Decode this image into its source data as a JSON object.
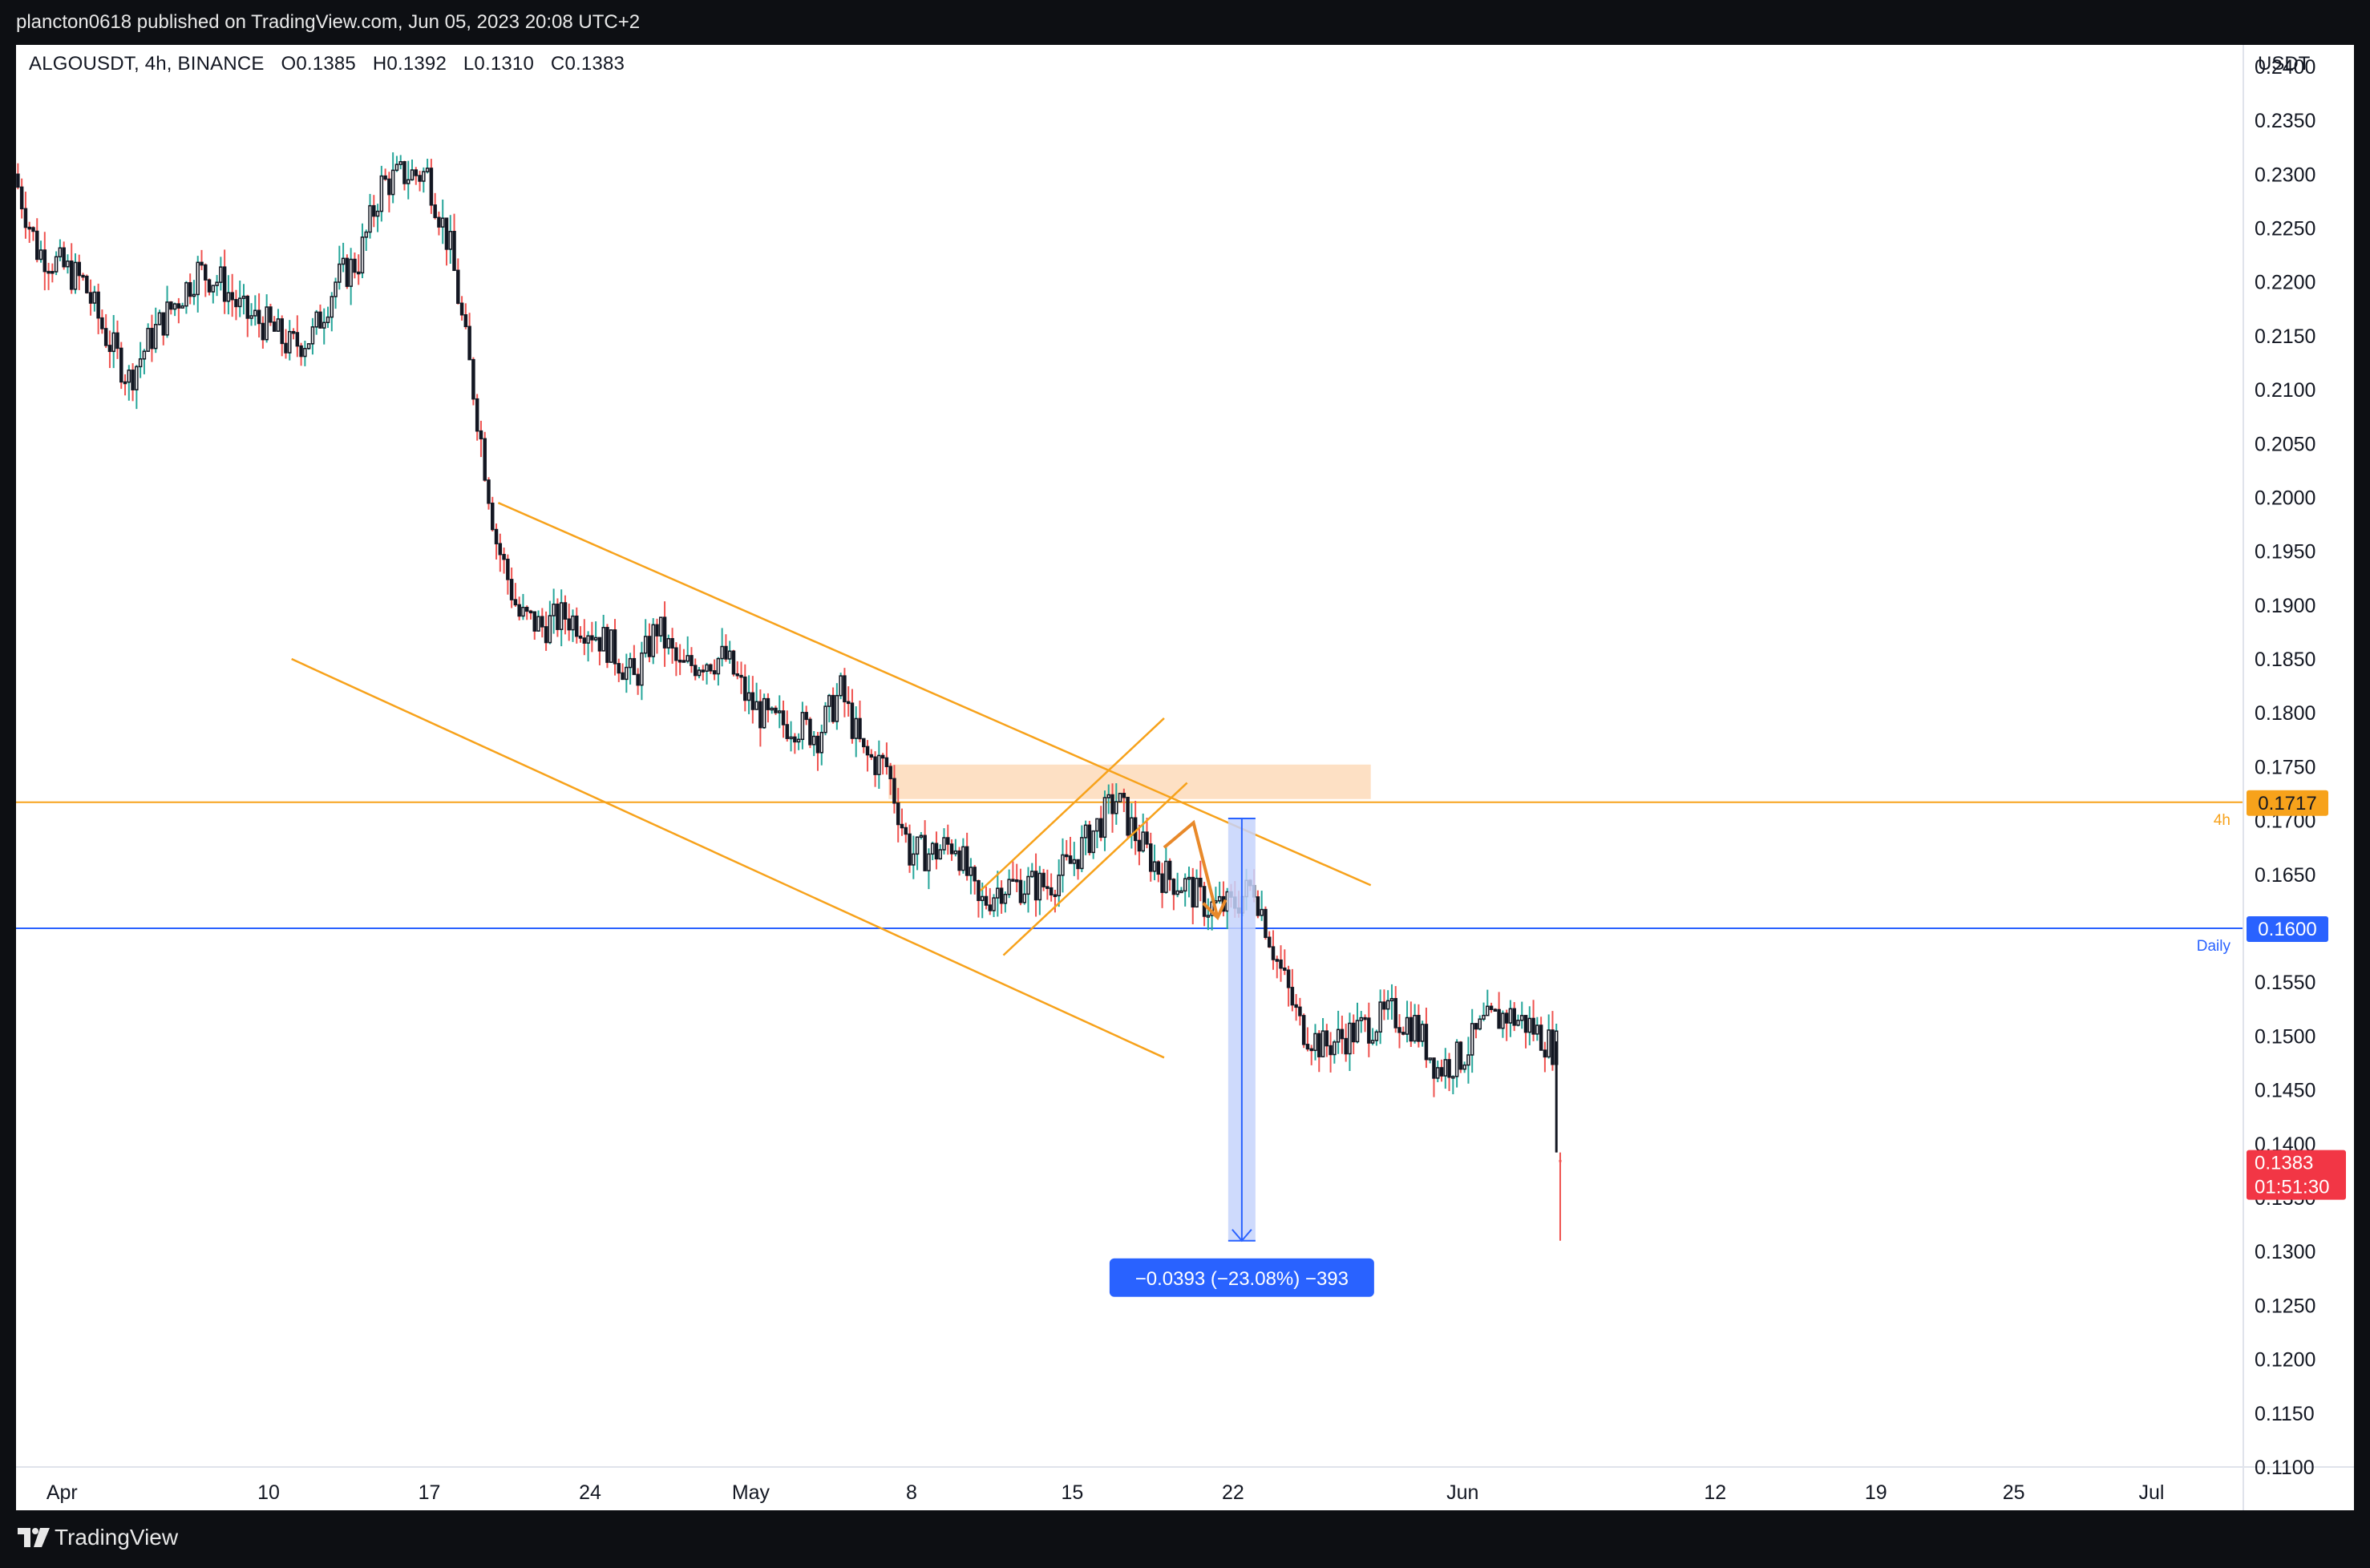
{
  "header": {
    "publisher_line": "plancton0618 published on TradingView.com, Jun 05, 2023 20:08 UTC+2"
  },
  "legend": {
    "symbol": "ALGOUSDT, 4h, BINANCE",
    "open": "O0.1385",
    "high": "H0.1392",
    "low": "L0.1310",
    "close": "C0.1383"
  },
  "price_axis": {
    "unit": "USDT"
  },
  "branding": {
    "name": "TradingView"
  },
  "colors": {
    "up": "#26a69a",
    "down": "#ef5350",
    "candle_body": "#131722",
    "drawing_orange": "#f7a21b",
    "daily_line": "#2962ff",
    "measure": "#2962ff",
    "last_price": "#f23645"
  },
  "chart_data": {
    "type": "candlestick",
    "symbol": "ALGOUSDT",
    "interval": "4h",
    "exchange": "BINANCE",
    "ohlc_last": {
      "open": 0.1385,
      "high": 0.1392,
      "low": 0.131,
      "close": 0.1383
    },
    "y_range": [
      0.11,
      0.242
    ],
    "y_ticks": [
      "0.2400",
      "0.2350",
      "0.2300",
      "0.2250",
      "0.2200",
      "0.2150",
      "0.2100",
      "0.2050",
      "0.2000",
      "0.1950",
      "0.1900",
      "0.1850",
      "0.1800",
      "0.1750",
      "0.1700",
      "0.1650",
      "0.1600",
      "0.1550",
      "0.1500",
      "0.1450",
      "0.1400",
      "0.1350",
      "0.1300",
      "0.1250",
      "0.1200",
      "0.1150",
      "0.1100"
    ],
    "x_range": [
      "2023-03-30",
      "2023-07-05"
    ],
    "x_ticks": [
      {
        "label": "Apr",
        "date": "2023-04-01"
      },
      {
        "label": "10",
        "date": "2023-04-10"
      },
      {
        "label": "17",
        "date": "2023-04-17"
      },
      {
        "label": "24",
        "date": "2023-04-24"
      },
      {
        "label": "May",
        "date": "2023-05-01"
      },
      {
        "label": "8",
        "date": "2023-05-08"
      },
      {
        "label": "15",
        "date": "2023-05-15"
      },
      {
        "label": "22",
        "date": "2023-05-22"
      },
      {
        "label": "Jun",
        "date": "2023-06-01"
      },
      {
        "label": "12",
        "date": "2023-06-12"
      },
      {
        "label": "19",
        "date": "2023-06-19"
      },
      {
        "label": "25",
        "date": "2023-06-25"
      },
      {
        "label": "Jul",
        "date": "2023-07-01"
      }
    ],
    "price_path": [
      [
        "2023-03-30",
        0.23
      ],
      [
        "2023-03-31",
        0.223
      ],
      [
        "2023-04-02",
        0.22
      ],
      [
        "2023-04-03",
        0.215
      ],
      [
        "2023-04-04",
        0.211
      ],
      [
        "2023-04-05",
        0.215
      ],
      [
        "2023-04-06",
        0.218
      ],
      [
        "2023-04-07",
        0.221
      ],
      [
        "2023-04-08",
        0.22
      ],
      [
        "2023-04-09",
        0.217
      ],
      [
        "2023-04-10",
        0.216
      ],
      [
        "2023-04-11",
        0.214
      ],
      [
        "2023-04-12",
        0.215
      ],
      [
        "2023-04-13",
        0.22
      ],
      [
        "2023-04-14",
        0.222
      ],
      [
        "2023-04-15",
        0.229
      ],
      [
        "2023-04-16",
        0.23
      ],
      [
        "2023-04-17",
        0.23
      ],
      [
        "2023-04-18",
        0.223
      ],
      [
        "2023-04-19",
        0.21
      ],
      [
        "2023-04-20",
        0.196
      ],
      [
        "2023-04-21",
        0.189
      ],
      [
        "2023-04-22",
        0.188
      ],
      [
        "2023-04-23",
        0.189
      ],
      [
        "2023-04-24",
        0.188
      ],
      [
        "2023-04-25",
        0.186
      ],
      [
        "2023-04-26",
        0.183
      ],
      [
        "2023-04-27",
        0.188
      ],
      [
        "2023-04-28",
        0.184
      ],
      [
        "2023-04-29",
        0.185
      ],
      [
        "2023-04-30",
        0.185
      ],
      [
        "2023-05-01",
        0.181
      ],
      [
        "2023-05-02",
        0.179
      ],
      [
        "2023-05-03",
        0.179
      ],
      [
        "2023-05-04",
        0.178
      ],
      [
        "2023-05-05",
        0.182
      ],
      [
        "2023-05-06",
        0.176
      ],
      [
        "2023-05-07",
        0.175
      ],
      [
        "2023-05-08",
        0.167
      ],
      [
        "2023-05-09",
        0.167
      ],
      [
        "2023-05-10",
        0.168
      ],
      [
        "2023-05-11",
        0.162
      ],
      [
        "2023-05-12",
        0.164
      ],
      [
        "2023-05-13",
        0.164
      ],
      [
        "2023-05-14",
        0.164
      ],
      [
        "2023-05-15",
        0.166
      ],
      [
        "2023-05-16",
        0.169
      ],
      [
        "2023-05-17",
        0.172
      ],
      [
        "2023-05-18",
        0.168
      ],
      [
        "2023-05-19",
        0.165
      ],
      [
        "2023-05-20",
        0.164
      ],
      [
        "2023-05-21",
        0.162
      ],
      [
        "2023-05-22",
        0.162
      ],
      [
        "2023-05-23",
        0.164
      ],
      [
        "2023-05-24",
        0.157
      ],
      [
        "2023-05-25",
        0.151
      ],
      [
        "2023-05-26",
        0.149
      ],
      [
        "2023-05-27",
        0.15
      ],
      [
        "2023-05-28",
        0.151
      ],
      [
        "2023-05-29",
        0.152
      ],
      [
        "2023-05-30",
        0.151
      ],
      [
        "2023-05-31",
        0.147
      ],
      [
        "2023-06-01",
        0.148
      ],
      [
        "2023-06-02",
        0.151
      ],
      [
        "2023-06-03",
        0.152
      ],
      [
        "2023-06-04",
        0.151
      ],
      [
        "2023-06-05",
        0.149
      ]
    ],
    "levels": [
      {
        "price": 0.1717,
        "label": "0.1717",
        "timeframe": "4h",
        "color": "#f7a21b"
      },
      {
        "price": 0.16,
        "label": "0.1600",
        "timeframe": "Daily",
        "color": "#2962ff"
      }
    ],
    "last_price": {
      "price": 0.1383,
      "label": "0.1383",
      "countdown": "01:51:30"
    },
    "supply_zone": {
      "from": "2023-05-07",
      "to": "2023-05-28",
      "top": 0.1752,
      "bottom": 0.172
    },
    "trendlines": [
      {
        "from": [
          "2023-04-20",
          0.1995
        ],
        "to": [
          "2023-05-28",
          0.164
        ]
      },
      {
        "from": [
          "2023-04-11",
          0.185
        ],
        "to": [
          "2023-05-19",
          0.148
        ]
      },
      {
        "from": [
          "2023-05-11",
          0.1635
        ],
        "to": [
          "2023-05-19",
          0.1795
        ]
      },
      {
        "from": [
          "2023-05-12",
          0.1575
        ],
        "to": [
          "2023-05-20",
          0.1735
        ]
      }
    ],
    "projection_path": [
      [
        "2023-05-19",
        0.1675
      ],
      [
        "2023-05-20",
        0.1698
      ],
      [
        "2023-05-20",
        0.161
      ]
    ],
    "measure": {
      "from_date": "2023-05-22",
      "to_date": "2023-05-23",
      "from_price": 0.1702,
      "to_price": 0.131,
      "label": "−0.0393 (−23.08%) −393"
    }
  }
}
